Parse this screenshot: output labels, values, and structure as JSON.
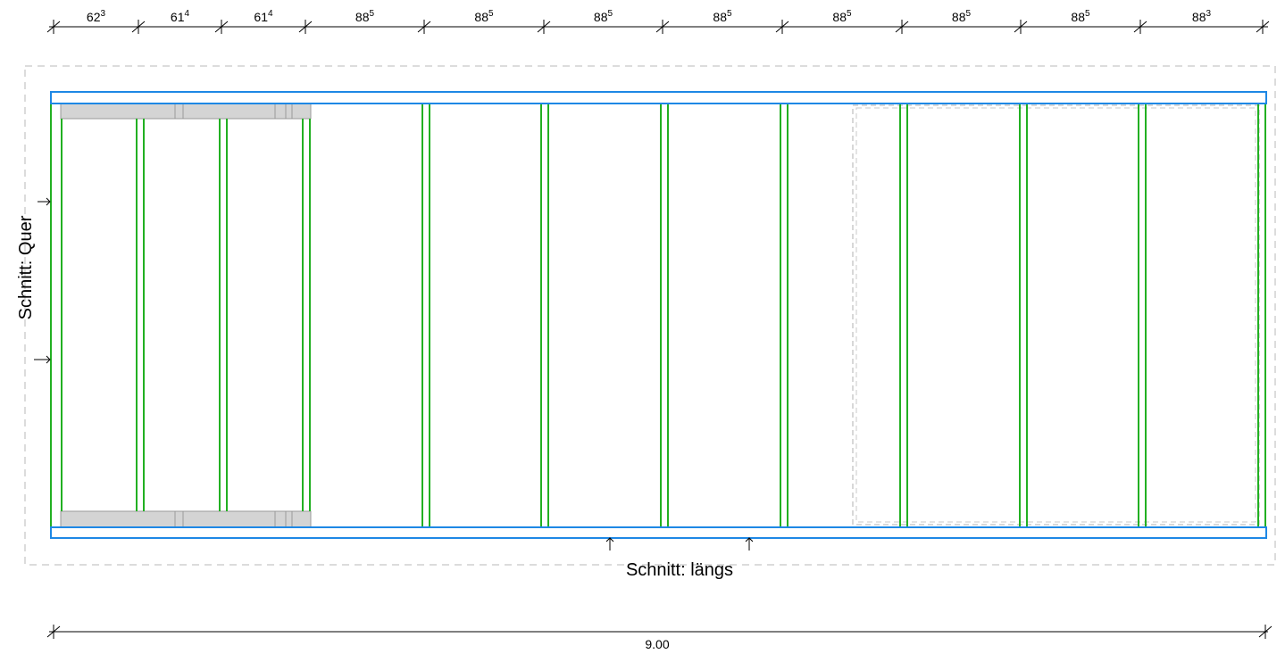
{
  "drawing": {
    "top_dimensions": [
      {
        "base": "62",
        "sup": "3"
      },
      {
        "base": "61",
        "sup": "4"
      },
      {
        "base": "61",
        "sup": "4"
      },
      {
        "base": "88",
        "sup": "5"
      },
      {
        "base": "88",
        "sup": "5"
      },
      {
        "base": "88",
        "sup": "5"
      },
      {
        "base": "88",
        "sup": "5"
      },
      {
        "base": "88",
        "sup": "5"
      },
      {
        "base": "88",
        "sup": "5"
      },
      {
        "base": "88",
        "sup": "5"
      },
      {
        "base": "88",
        "sup": "3"
      }
    ],
    "overall_dimension": "9.00",
    "section_cross_label": "Schnitt:  Quer",
    "section_long_label": "Schnitt:  längs"
  },
  "colors": {
    "frame_blue": "#1e88e5",
    "joist_green": "#22b022",
    "plate_gray": "#d4d4d4",
    "dashed_gray": "#b0b0b0",
    "ink": "#000000"
  }
}
